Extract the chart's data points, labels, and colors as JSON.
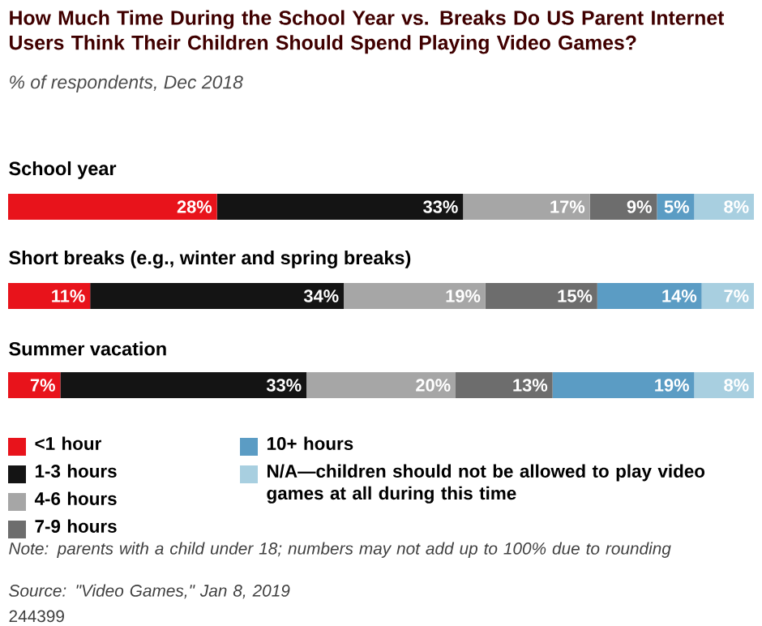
{
  "chart_data": {
    "type": "bar",
    "orientation": "horizontal",
    "stacked": true,
    "title": "How Much Time During the School Year vs. Breaks Do US Parent Internet Users Think Their Children Should Spend Playing Video Games?",
    "subtitle": "% of respondents, Dec 2018",
    "categories": [
      "School year",
      "Short breaks (e.g., winter and spring breaks)",
      "Summer vacation"
    ],
    "tick_labels": "y",
    "legend": "bottom left",
    "series": [
      {
        "name": "<1 hour",
        "color": "#e8131b",
        "values": [
          28,
          11,
          7
        ],
        "value_labels": [
          "28%",
          "11%",
          "7%"
        ]
      },
      {
        "name": "1-3 hours",
        "color": "#141414",
        "values": [
          33,
          34,
          33
        ],
        "value_labels": [
          "33%",
          "34%",
          "33%"
        ]
      },
      {
        "name": "4-6 hours",
        "color": "#a6a6a6",
        "values": [
          17,
          19,
          20
        ],
        "value_labels": [
          "17%",
          "19%",
          "20%"
        ]
      },
      {
        "name": "7-9 hours",
        "color": "#6d6d6d",
        "values": [
          9,
          15,
          13
        ],
        "value_labels": [
          "9%",
          "15%",
          "13%"
        ]
      },
      {
        "name": "10+ hours",
        "color": "#5b9cc4",
        "values": [
          5,
          14,
          19
        ],
        "value_labels": [
          "5%",
          "14%",
          "19%"
        ]
      },
      {
        "name": "N/A—children should not be allowed to play video games at all during this time",
        "color": "#a8cfe0",
        "values": [
          8,
          7,
          8
        ],
        "value_labels": [
          "8%",
          "7%",
          "8%"
        ]
      }
    ],
    "annotations": [
      "Note: parents with a child under 18; numbers may not add up to 100% due to rounding",
      "Source: \"Video Games,\" Jan 8, 2019",
      "244399"
    ]
  }
}
